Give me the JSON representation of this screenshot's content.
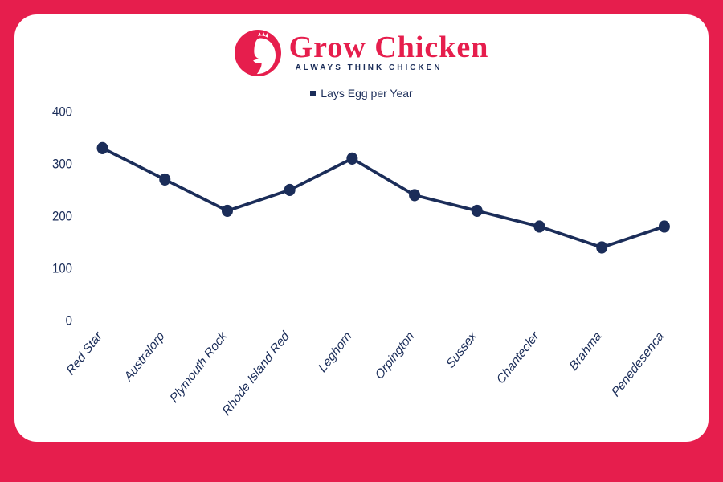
{
  "brand": {
    "name": "Grow Chicken",
    "tagline": "ALWAYS THINK CHICKEN",
    "accent_color": "#e61e4d",
    "text_color": "#1b2d59"
  },
  "chart": {
    "type": "line",
    "legend_label": "Lays Egg per Year",
    "series_color": "#1b2d59",
    "marker_style": "circle",
    "marker_radius": 7,
    "line_width": 3.5,
    "background_color": "#ffffff",
    "outer_background": "#e61e4d",
    "label_fontsize": 15,
    "label_fontstyle": "italic",
    "ytick_fontsize": 15,
    "ylim": [
      0,
      400
    ],
    "ytick_step": 100,
    "yticks": [
      0,
      100,
      200,
      300,
      400
    ],
    "categories": [
      "Red Star",
      "Australorp",
      "Plymouth Rock",
      "Rhode Island Red",
      "Leghorn",
      "Orpington",
      "Sussex",
      "Chantecler",
      "Brahma",
      "Penedesenca"
    ],
    "values": [
      330,
      270,
      210,
      250,
      310,
      240,
      210,
      180,
      140,
      180
    ]
  }
}
